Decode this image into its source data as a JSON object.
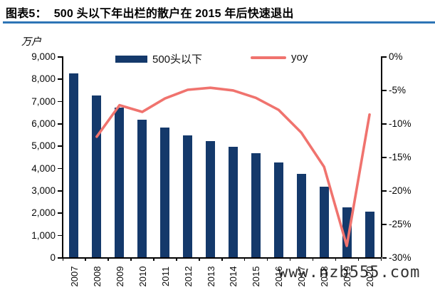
{
  "header": {
    "figure_label": "图表5：",
    "title": "500 头以下年出栏的散户在 2015 年后快速退出",
    "rule_color": "#2E75B6"
  },
  "watermark": "www.nzb555.com",
  "chart_data": {
    "type": "bar",
    "subtype": "bar+line combo, dual axis",
    "categories": [
      "2007",
      "2008",
      "2009",
      "2010",
      "2011",
      "2012",
      "2013",
      "2014",
      "2015",
      "2016",
      "2017",
      "2018",
      "2019",
      "2020"
    ],
    "series": [
      {
        "name": "500头以下",
        "type": "bar",
        "axis": "left",
        "color": "#14396B",
        "values": [
          8250,
          7250,
          6700,
          6150,
          5800,
          5450,
          5200,
          4950,
          4650,
          4250,
          3750,
          3150,
          2250,
          2050
        ]
      },
      {
        "name": "yoy",
        "type": "line",
        "axis": "right",
        "color": "#F0736E",
        "values": [
          null,
          -12.0,
          -7.3,
          -8.3,
          -6.3,
          -5.0,
          -4.7,
          -5.1,
          -6.2,
          -8.0,
          -11.4,
          -16.5,
          -28.3,
          -8.7
        ]
      }
    ],
    "left_axis": {
      "label": "万户",
      "min": 0,
      "max": 9000,
      "step": 1000,
      "tick_labels": [
        "9,000",
        "8,000",
        "7,000",
        "6,000",
        "5,000",
        "4,000",
        "3,000",
        "2,000",
        "1,000",
        "0"
      ]
    },
    "right_axis": {
      "min": -30,
      "max": 0,
      "step": 5,
      "tick_labels": [
        "0%",
        "-5%",
        "-10%",
        "-15%",
        "-20%",
        "-25%",
        "-30%"
      ]
    },
    "legend_position": "top",
    "grid": false
  }
}
